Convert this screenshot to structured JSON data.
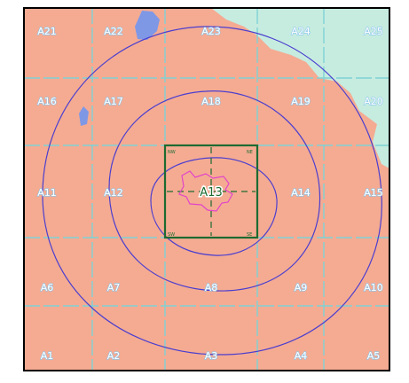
{
  "map": {
    "colors": {
      "land": "#f4ab92",
      "green_area": "#c6ece0",
      "water": "#7f98e6",
      "grid": "#7fd2d4",
      "label_fill": "#ffffff",
      "label_stroke": "#8cc7ee",
      "rings": "#4b3ecf",
      "box": "#1d6b31",
      "boundary": "#e245c9",
      "frame": "#000000"
    },
    "tiles": [
      {
        "id": "A21",
        "label": "A21"
      },
      {
        "id": "A22",
        "label": "A22"
      },
      {
        "id": "A23",
        "label": "A23"
      },
      {
        "id": "A24",
        "label": "A24"
      },
      {
        "id": "A25",
        "label": "A25"
      },
      {
        "id": "A16",
        "label": "A16"
      },
      {
        "id": "A17",
        "label": "A17"
      },
      {
        "id": "A18",
        "label": "A18"
      },
      {
        "id": "A19",
        "label": "A19"
      },
      {
        "id": "A20",
        "label": "A20"
      },
      {
        "id": "A11",
        "label": "A11"
      },
      {
        "id": "A12",
        "label": "A12"
      },
      {
        "id": "A13",
        "label": "A13"
      },
      {
        "id": "A14",
        "label": "A14"
      },
      {
        "id": "A15",
        "label": "A15"
      },
      {
        "id": "A6",
        "label": "A6"
      },
      {
        "id": "A7",
        "label": "A7"
      },
      {
        "id": "A8",
        "label": "A8"
      },
      {
        "id": "A9",
        "label": "A9"
      },
      {
        "id": "A10",
        "label": "A10"
      },
      {
        "id": "A1",
        "label": "A1"
      },
      {
        "id": "A2",
        "label": "A2"
      },
      {
        "id": "A3",
        "label": "A3"
      },
      {
        "id": "A4",
        "label": "A4"
      },
      {
        "id": "A5",
        "label": "A5"
      }
    ],
    "center_tile": "A13",
    "corner_labels": {
      "nw": "NW",
      "ne": "NE",
      "sw": "SW",
      "se": "SE"
    }
  }
}
